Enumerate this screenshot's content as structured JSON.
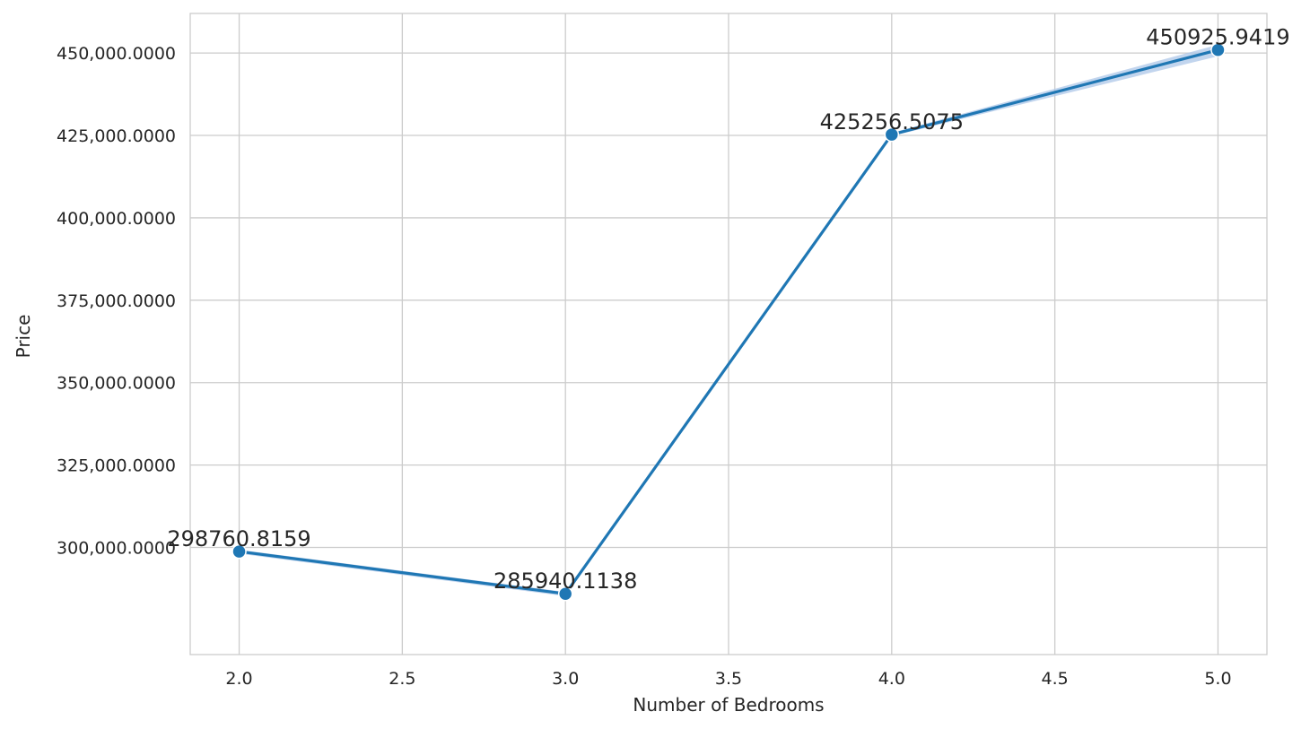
{
  "chart_data": {
    "type": "line",
    "title": "",
    "xlabel": "Number of Bedrooms",
    "ylabel": "Price",
    "x": [
      2.0,
      3.0,
      4.0,
      5.0
    ],
    "series": [
      {
        "values": [
          298760.8159,
          285940.1138,
          425256.5075,
          450925.9419
        ],
        "data_labels": [
          "298760.8159",
          "285940.1138",
          "425256.5075",
          "450925.9419"
        ],
        "ci_low": [
          298100,
          285200,
          424800,
          449000
        ],
        "ci_high": [
          299300,
          286500,
          425800,
          452500
        ],
        "color": "#1f77b4",
        "ci_color": "#aec7e8"
      }
    ],
    "xlim": [
      1.85,
      5.15
    ],
    "ylim": [
      267500,
      462000
    ],
    "x_ticks": [
      2.0,
      2.5,
      3.0,
      3.5,
      4.0,
      4.5,
      5.0
    ],
    "x_tick_labels": [
      "2.0",
      "2.5",
      "3.0",
      "3.5",
      "4.0",
      "4.5",
      "5.0"
    ],
    "y_ticks": [
      300000,
      325000,
      350000,
      375000,
      400000,
      425000,
      450000
    ],
    "y_tick_labels": [
      "300,000.0000",
      "325,000.0000",
      "350,000.0000",
      "375,000.0000",
      "400,000.0000",
      "425,000.0000",
      "450,000.0000"
    ],
    "grid": true,
    "legend": "none"
  }
}
